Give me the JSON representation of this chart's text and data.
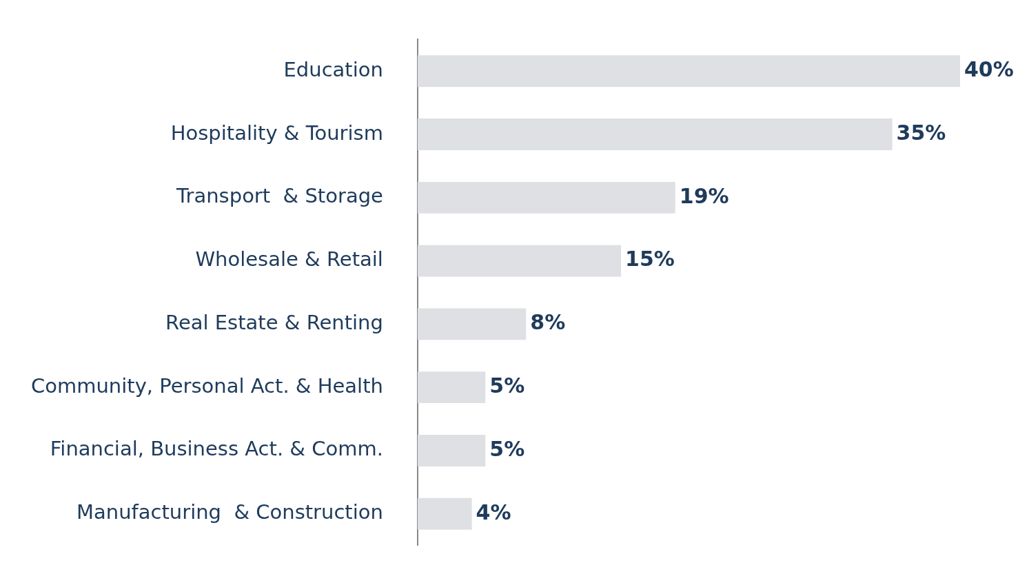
{
  "chart_data": {
    "type": "bar",
    "orientation": "horizontal",
    "categories": [
      "Education",
      "Hospitality & Tourism",
      "Transport  & Storage",
      "Wholesale & Retail",
      "Real Estate & Renting",
      "Community, Personal Act. & Health",
      "Financial, Business Act. & Comm.",
      "Manufacturing  & Construction"
    ],
    "values": [
      40,
      35,
      19,
      15,
      8,
      5,
      5,
      4
    ],
    "value_labels": [
      "40%",
      "35%",
      "19%",
      "15%",
      "8%",
      "5%",
      "5%",
      "4%"
    ],
    "color": "#dfe0e4",
    "grid": false,
    "legend": false,
    "tick_labels": "y"
  }
}
